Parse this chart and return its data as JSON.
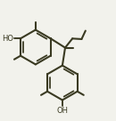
{
  "bg_color": "#f2f2ec",
  "bond_color": "#3a3a22",
  "lw": 1.5,
  "r1cx": 0.28,
  "r1cy": 0.62,
  "r2cx": 0.52,
  "r2cy": 0.3,
  "rr": 0.155,
  "rot1": 30,
  "rot2": 30,
  "qcx": 0.545,
  "qcy": 0.615
}
